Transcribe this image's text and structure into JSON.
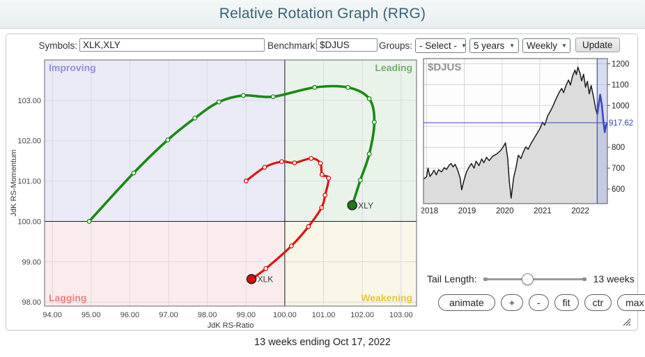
{
  "header": {
    "title": "Relative Rotation Graph (RRG)"
  },
  "toolbar": {
    "symbols_label": "Symbols:",
    "symbols_value": "XLK,XLY",
    "benchmark_label": "Benchmark:",
    "benchmark_value": "$DJUS",
    "groups_label": "Groups:",
    "groups_value": "- Select -",
    "period_value": "5 years",
    "frequency_value": "Weekly",
    "update_label": "Update",
    "chevron": "▼"
  },
  "controls": {
    "tail_length_label": "Tail Length:",
    "tail_length_value": "13 weeks",
    "slider_percent": 43,
    "buttons": [
      "animate",
      "+",
      "-",
      "fit",
      "ctr",
      "max"
    ]
  },
  "footer": {
    "caption": "13 weeks ending Oct 17, 2022"
  },
  "chart_data": [
    {
      "type": "line",
      "title": "RRG quadrant chart",
      "xlabel": "JdK RS-Ratio",
      "ylabel": "JdK RS-Momentum",
      "xlim": [
        93.8,
        103.4
      ],
      "ylim": [
        97.9,
        104.0
      ],
      "xticks": [
        94,
        95,
        96,
        97,
        98,
        99,
        100,
        101,
        102,
        103
      ],
      "yticks": [
        98,
        99,
        100,
        101,
        102,
        103
      ],
      "center": [
        100,
        100
      ],
      "grid": true,
      "colors": {
        "grid": "#d9d9de",
        "frame": "#666666",
        "center_line": "#1a1a1a"
      },
      "quadrants": {
        "improving": {
          "label": "Improving",
          "color": "#8f90d8",
          "bg": "#ebebf7"
        },
        "leading": {
          "label": "Leading",
          "color": "#74b06c",
          "bg": "#eaf3ea"
        },
        "lagging": {
          "label": "Lagging",
          "color": "#f17f7f",
          "bg": "#faecec"
        },
        "weakening": {
          "label": "Weakening",
          "color": "#e6c642",
          "bg": "#faf6e8"
        }
      },
      "series": [
        {
          "name": "XLY",
          "color": "#178a12",
          "head_color": "#1d7a1a",
          "points": [
            [
              94.95,
              100.0
            ],
            [
              96.1,
              101.2
            ],
            [
              96.98,
              102.02
            ],
            [
              97.68,
              102.56
            ],
            [
              98.3,
              102.96
            ],
            [
              98.93,
              103.12
            ],
            [
              99.7,
              103.09
            ],
            [
              100.77,
              103.32
            ],
            [
              101.63,
              103.32
            ],
            [
              102.18,
              103.04
            ],
            [
              102.31,
              102.46
            ],
            [
              102.18,
              101.67
            ],
            [
              101.95,
              101.02
            ],
            [
              101.74,
              100.4
            ]
          ]
        },
        {
          "name": "XLK",
          "color": "#e01212",
          "head_color": "#d80f0f",
          "points": [
            [
              99.0,
              101.0
            ],
            [
              99.48,
              101.34
            ],
            [
              99.92,
              101.48
            ],
            [
              100.25,
              101.45
            ],
            [
              100.68,
              101.56
            ],
            [
              100.92,
              101.44
            ],
            [
              100.96,
              101.16
            ],
            [
              101.13,
              101.07
            ],
            [
              101.04,
              100.65
            ],
            [
              100.95,
              100.34
            ],
            [
              100.61,
              99.87
            ],
            [
              100.17,
              99.39
            ],
            [
              99.51,
              98.83
            ],
            [
              99.14,
              98.57
            ]
          ]
        }
      ]
    },
    {
      "type": "area",
      "title": "$DJUS",
      "xlim": [
        2017.92,
        2022.79
      ],
      "ylim": [
        530,
        1225
      ],
      "xticks": [
        2018,
        2019,
        2020,
        2021,
        2022
      ],
      "ytick_labels": [
        1200,
        1100,
        1000,
        800,
        700,
        600
      ],
      "grid_values": [
        600,
        700,
        800,
        900,
        1000,
        1100,
        1200
      ],
      "current_value_label": "917.62",
      "current_value": 917.62,
      "highlight_start": 2022.52,
      "colors": {
        "line": "#1a1a1a",
        "fill": "#dcdcdc",
        "accent": "#3a48c8",
        "band": "#aab4e4",
        "frame": "#555555",
        "grid": "#d5d5d5"
      },
      "points": [
        [
          2017.92,
          648
        ],
        [
          2018.0,
          658
        ],
        [
          2018.04,
          700
        ],
        [
          2018.09,
          660
        ],
        [
          2018.15,
          674
        ],
        [
          2018.2,
          690
        ],
        [
          2018.26,
          668
        ],
        [
          2018.32,
          692
        ],
        [
          2018.4,
          682
        ],
        [
          2018.47,
          702
        ],
        [
          2018.53,
          694
        ],
        [
          2018.6,
          714
        ],
        [
          2018.65,
          722
        ],
        [
          2018.7,
          706
        ],
        [
          2018.76,
          718
        ],
        [
          2018.83,
          688
        ],
        [
          2018.89,
          652
        ],
        [
          2018.93,
          596
        ],
        [
          2018.98,
          634
        ],
        [
          2019.06,
          682
        ],
        [
          2019.13,
          706
        ],
        [
          2019.19,
          722
        ],
        [
          2019.26,
          700
        ],
        [
          2019.31,
          733
        ],
        [
          2019.39,
          712
        ],
        [
          2019.46,
          744
        ],
        [
          2019.52,
          726
        ],
        [
          2019.59,
          752
        ],
        [
          2019.66,
          736
        ],
        [
          2019.76,
          758
        ],
        [
          2019.86,
          768
        ],
        [
          2019.96,
          784
        ],
        [
          2020.03,
          802
        ],
        [
          2020.09,
          821
        ],
        [
          2020.15,
          748
        ],
        [
          2020.19,
          640
        ],
        [
          2020.24,
          556
        ],
        [
          2020.31,
          658
        ],
        [
          2020.37,
          702
        ],
        [
          2020.43,
          762
        ],
        [
          2020.5,
          746
        ],
        [
          2020.56,
          776
        ],
        [
          2020.63,
          802
        ],
        [
          2020.69,
          790
        ],
        [
          2020.76,
          816
        ],
        [
          2020.86,
          846
        ],
        [
          2020.96,
          876
        ],
        [
          2021.02,
          895
        ],
        [
          2021.07,
          920
        ],
        [
          2021.13,
          906
        ],
        [
          2021.21,
          950
        ],
        [
          2021.29,
          976
        ],
        [
          2021.36,
          1002
        ],
        [
          2021.43,
          1032
        ],
        [
          2021.51,
          1062
        ],
        [
          2021.58,
          1082
        ],
        [
          2021.63,
          1062
        ],
        [
          2021.7,
          1098
        ],
        [
          2021.76,
          1122
        ],
        [
          2021.81,
          1098
        ],
        [
          2021.87,
          1142
        ],
        [
          2021.93,
          1170
        ],
        [
          2021.97,
          1148
        ],
        [
          2022.01,
          1184
        ],
        [
          2022.06,
          1158
        ],
        [
          2022.11,
          1118
        ],
        [
          2022.16,
          1150
        ],
        [
          2022.21,
          1088
        ],
        [
          2022.26,
          1116
        ],
        [
          2022.31,
          1056
        ],
        [
          2022.36,
          1096
        ],
        [
          2022.43,
          1034
        ],
        [
          2022.48,
          984
        ],
        [
          2022.52,
          958
        ],
        [
          2022.56,
          1006
        ],
        [
          2022.6,
          1052
        ],
        [
          2022.64,
          1006
        ],
        [
          2022.68,
          934
        ],
        [
          2022.72,
          872
        ],
        [
          2022.75,
          902
        ],
        [
          2022.78,
          917.62
        ]
      ]
    }
  ]
}
